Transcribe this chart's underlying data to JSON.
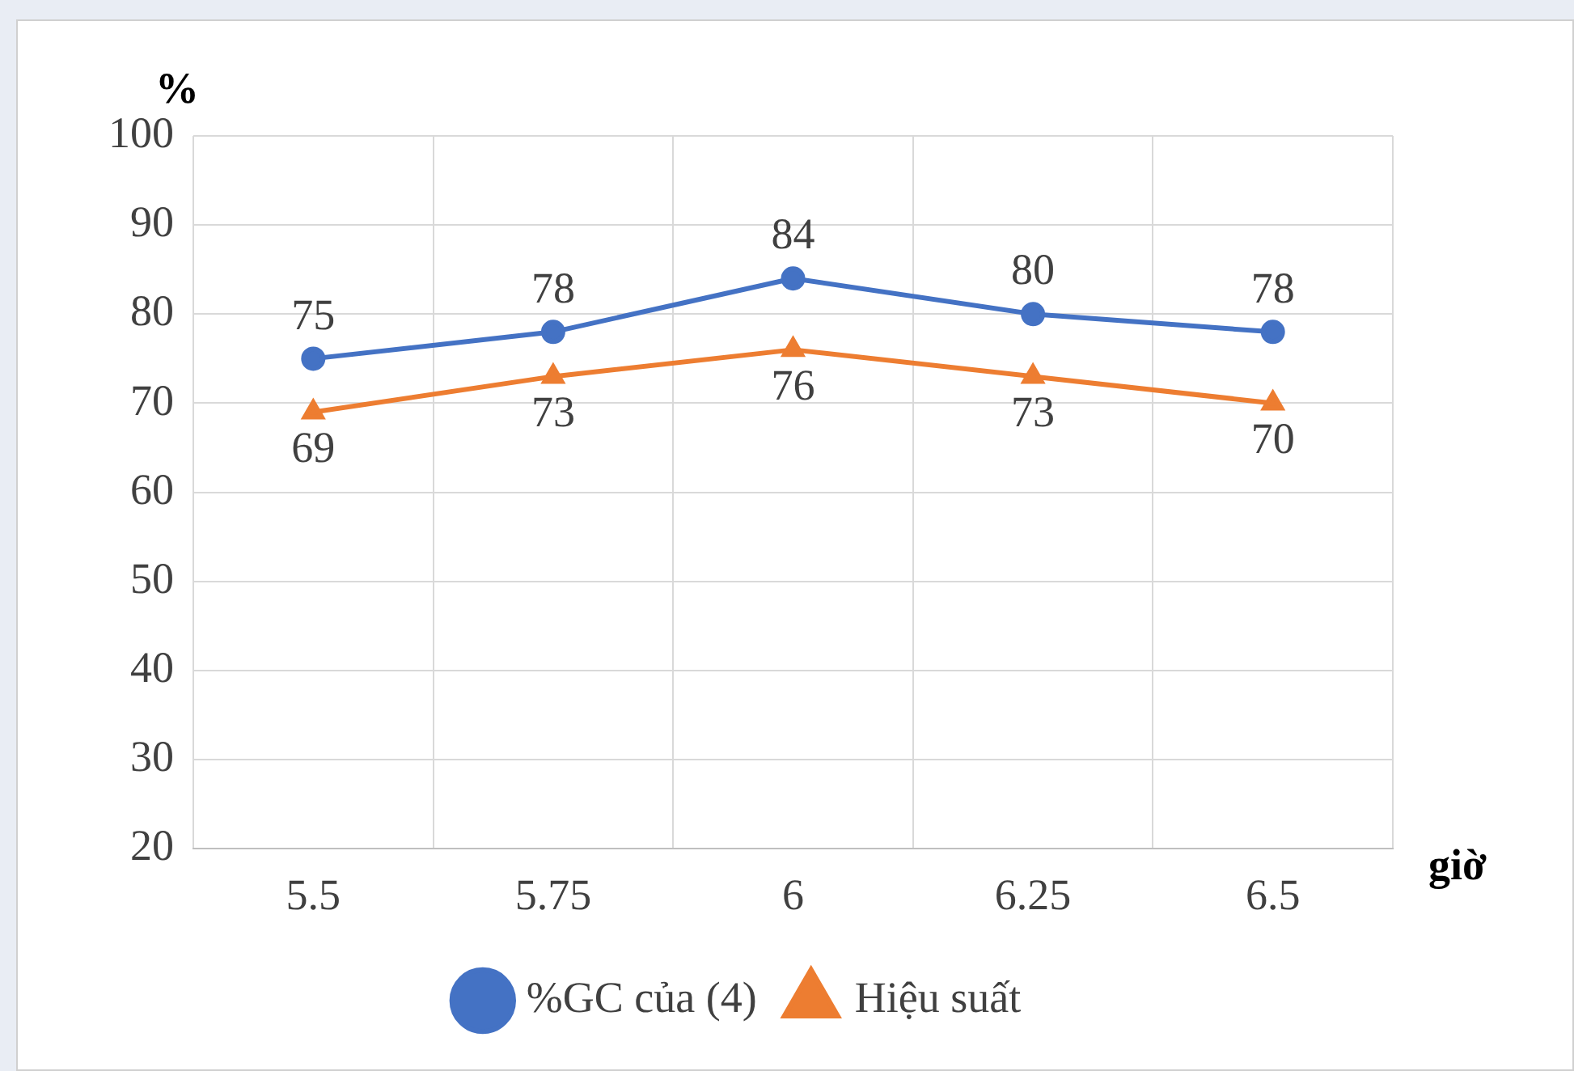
{
  "chart_data": {
    "type": "line",
    "ylabel": "%",
    "xlabel": "giờ",
    "categories": [
      "5.5",
      "5.75",
      "6",
      "6.25",
      "6.5"
    ],
    "series": [
      {
        "name": "%GC của (4)",
        "color": "#4472c4",
        "marker": "circle",
        "values": [
          75,
          78,
          84,
          80,
          78
        ]
      },
      {
        "name": "Hiệu suất",
        "color": "#ed7d31",
        "marker": "triangle",
        "values": [
          69,
          73,
          76,
          73,
          70
        ]
      }
    ],
    "ylim": [
      20,
      100
    ],
    "yticks": [
      20,
      30,
      40,
      50,
      60,
      70,
      80,
      90,
      100
    ],
    "grid": true,
    "legend": "bottom",
    "data_labels": true
  }
}
